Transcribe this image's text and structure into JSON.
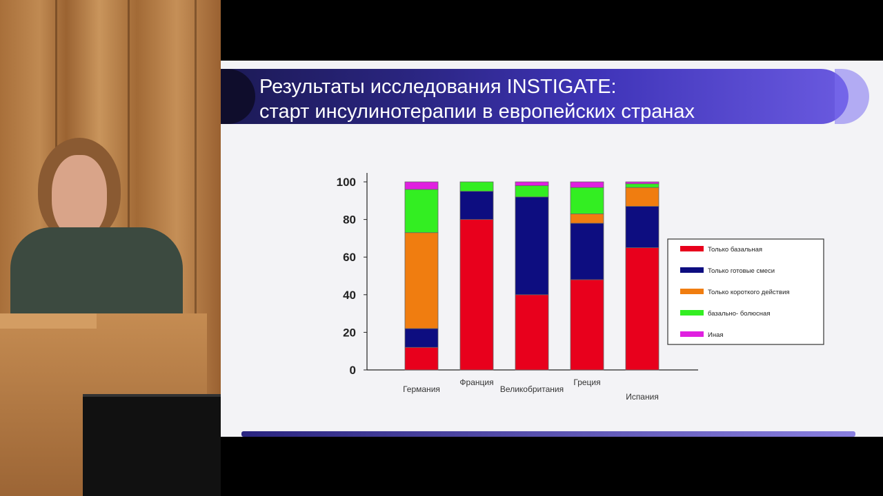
{
  "slide": {
    "title_line1": "Результаты исследования INSTIGATE:",
    "title_line2": "старт инсулинотерапии в европейских странах"
  },
  "chart_data": {
    "type": "bar",
    "stacked": true,
    "categories": [
      "Германия",
      "Франция",
      "Великобритания",
      "Греция",
      "Испания"
    ],
    "series": [
      {
        "name": "Только базальная",
        "color": "#e8001c",
        "values": [
          12,
          80,
          40,
          48,
          65
        ]
      },
      {
        "name": "Только готовые смеси",
        "color": "#0d0d80",
        "values": [
          10,
          15,
          52,
          30,
          22
        ]
      },
      {
        "name": "Только короткого действия",
        "color": "#f07d10",
        "values": [
          51,
          0,
          0,
          5,
          10
        ]
      },
      {
        "name": "базально- болюсная",
        "color": "#33ee22",
        "values": [
          23,
          5,
          6,
          14,
          2
        ]
      },
      {
        "name": "Иная",
        "color": "#e020e0",
        "values": [
          4,
          0,
          2,
          3,
          1
        ]
      }
    ],
    "yticks": [
      0,
      20,
      40,
      60,
      80,
      100
    ],
    "ylim": [
      0,
      100
    ],
    "legend_position": "right"
  }
}
